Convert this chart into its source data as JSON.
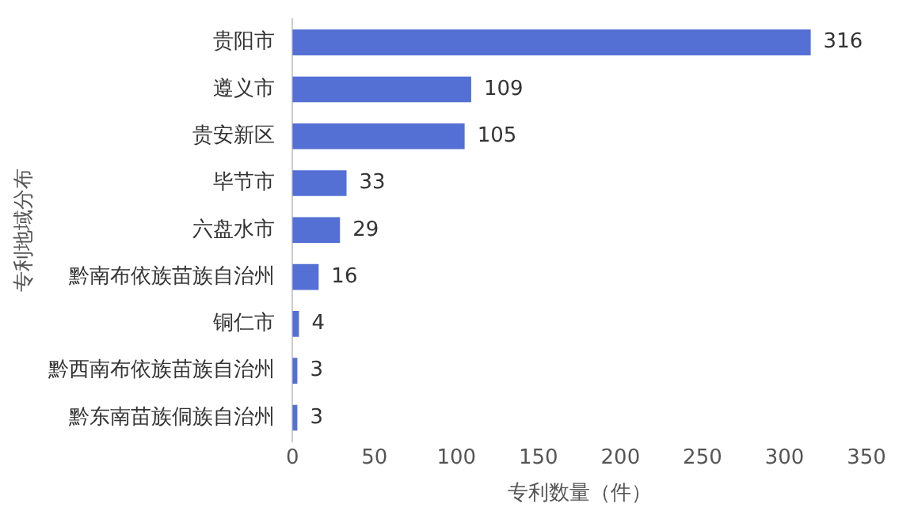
{
  "chart_data": {
    "type": "bar",
    "orientation": "horizontal",
    "xlabel": "专利数量（件）",
    "ylabel": "专利地域分布",
    "categories": [
      "贵阳市",
      "遵义市",
      "贵安新区",
      "毕节市",
      "六盘水市",
      "黔南布依族苗族自治州",
      "铜仁市",
      "黔西南布依族苗族自治州",
      "黔东南苗族侗族自治州"
    ],
    "values": [
      316,
      109,
      105,
      33,
      29,
      16,
      4,
      3,
      3
    ],
    "color": "#5470d4",
    "xlim": [
      0,
      350
    ],
    "xticks": [
      0,
      50,
      100,
      150,
      200,
      250,
      300,
      350
    ],
    "grid": false,
    "data_labels": true,
    "legend": false
  }
}
